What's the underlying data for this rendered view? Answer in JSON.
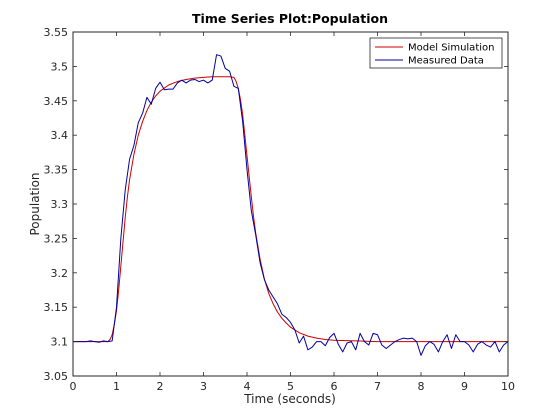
{
  "chart_data": {
    "type": "line",
    "title": "Time Series Plot:Population",
    "xlabel": "Time (seconds)",
    "ylabel": "Population",
    "xlim": [
      0,
      10
    ],
    "ylim": [
      3.05,
      3.55
    ],
    "x_ticks": [
      0,
      1,
      2,
      3,
      4,
      5,
      6,
      7,
      8,
      9,
      10
    ],
    "x_tick_labels": [
      "0",
      "1",
      "2",
      "3",
      "4",
      "5",
      "6",
      "7",
      "8",
      "9",
      "10"
    ],
    "y_ticks": [
      3.05,
      3.1,
      3.15,
      3.2,
      3.25,
      3.3,
      3.35,
      3.4,
      3.45,
      3.5,
      3.55
    ],
    "y_tick_labels": [
      "3.05",
      "3.1",
      "3.15",
      "3.2",
      "3.25",
      "3.3",
      "3.35",
      "3.4",
      "3.45",
      "3.5",
      "3.55"
    ],
    "grid": false,
    "legend_position": "top-right",
    "series": [
      {
        "name": "Model Simulation",
        "color": "#cc0000",
        "x": [
          0,
          0.8,
          0.85,
          0.9,
          0.95,
          1.0,
          1.05,
          1.1,
          1.15,
          1.2,
          1.25,
          1.3,
          1.4,
          1.5,
          1.6,
          1.7,
          1.8,
          1.9,
          2.0,
          2.2,
          2.4,
          2.6,
          2.8,
          3.0,
          3.2,
          3.4,
          3.6,
          3.7,
          3.75,
          3.8,
          3.85,
          3.9,
          3.95,
          4.0,
          4.05,
          4.1,
          4.15,
          4.2,
          4.3,
          4.4,
          4.5,
          4.6,
          4.7,
          4.8,
          4.9,
          5.0,
          5.2,
          5.4,
          5.6,
          5.8,
          6.0,
          6.5,
          7.0,
          8.0,
          9.0,
          10.0
        ],
        "y": [
          3.1,
          3.1,
          3.103,
          3.11,
          3.125,
          3.145,
          3.175,
          3.21,
          3.245,
          3.28,
          3.31,
          3.335,
          3.372,
          3.4,
          3.42,
          3.436,
          3.448,
          3.457,
          3.464,
          3.473,
          3.478,
          3.481,
          3.483,
          3.484,
          3.485,
          3.485,
          3.485,
          3.484,
          3.478,
          3.468,
          3.452,
          3.43,
          3.4,
          3.37,
          3.34,
          3.31,
          3.282,
          3.258,
          3.22,
          3.191,
          3.17,
          3.155,
          3.143,
          3.134,
          3.127,
          3.121,
          3.113,
          3.108,
          3.105,
          3.103,
          3.102,
          3.101,
          3.1,
          3.1,
          3.1,
          3.1
        ]
      },
      {
        "name": "Measured Data",
        "color": "#0000a0",
        "x": [
          0,
          0.1,
          0.2,
          0.3,
          0.4,
          0.5,
          0.6,
          0.7,
          0.8,
          0.9,
          1.0,
          1.1,
          1.2,
          1.3,
          1.4,
          1.5,
          1.6,
          1.7,
          1.8,
          1.9,
          2.0,
          2.1,
          2.2,
          2.3,
          2.4,
          2.5,
          2.6,
          2.7,
          2.8,
          2.9,
          3.0,
          3.1,
          3.2,
          3.3,
          3.4,
          3.5,
          3.6,
          3.7,
          3.8,
          3.9,
          4.0,
          4.1,
          4.2,
          4.3,
          4.4,
          4.5,
          4.6,
          4.7,
          4.8,
          4.9,
          5.0,
          5.1,
          5.2,
          5.3,
          5.4,
          5.5,
          5.6,
          5.7,
          5.8,
          5.9,
          6.0,
          6.1,
          6.2,
          6.3,
          6.4,
          6.5,
          6.6,
          6.7,
          6.8,
          6.9,
          7.0,
          7.1,
          7.2,
          7.3,
          7.4,
          7.5,
          7.6,
          7.7,
          7.8,
          7.9,
          8.0,
          8.1,
          8.2,
          8.3,
          8.4,
          8.5,
          8.6,
          8.7,
          8.8,
          8.9,
          9.0,
          9.1,
          9.2,
          9.3,
          9.4,
          9.5,
          9.6,
          9.7,
          9.8,
          9.9,
          10.0
        ],
        "y": [
          3.1,
          3.1,
          3.1,
          3.1,
          3.101,
          3.1,
          3.099,
          3.101,
          3.1,
          3.101,
          3.15,
          3.25,
          3.32,
          3.365,
          3.385,
          3.418,
          3.432,
          3.455,
          3.445,
          3.468,
          3.477,
          3.466,
          3.467,
          3.467,
          3.476,
          3.48,
          3.476,
          3.48,
          3.481,
          3.478,
          3.48,
          3.476,
          3.48,
          3.517,
          3.515,
          3.497,
          3.493,
          3.471,
          3.468,
          3.42,
          3.35,
          3.29,
          3.255,
          3.215,
          3.19,
          3.175,
          3.165,
          3.155,
          3.14,
          3.135,
          3.128,
          3.117,
          3.098,
          3.108,
          3.088,
          3.092,
          3.1,
          3.1,
          3.094,
          3.106,
          3.112,
          3.096,
          3.085,
          3.098,
          3.1,
          3.088,
          3.112,
          3.1,
          3.095,
          3.112,
          3.11,
          3.095,
          3.09,
          3.095,
          3.1,
          3.103,
          3.105,
          3.104,
          3.105,
          3.1,
          3.08,
          3.094,
          3.1,
          3.096,
          3.085,
          3.1,
          3.11,
          3.09,
          3.11,
          3.1,
          3.1,
          3.095,
          3.085,
          3.096,
          3.1,
          3.095,
          3.092,
          3.1,
          3.085,
          3.095,
          3.1
        ]
      }
    ]
  }
}
